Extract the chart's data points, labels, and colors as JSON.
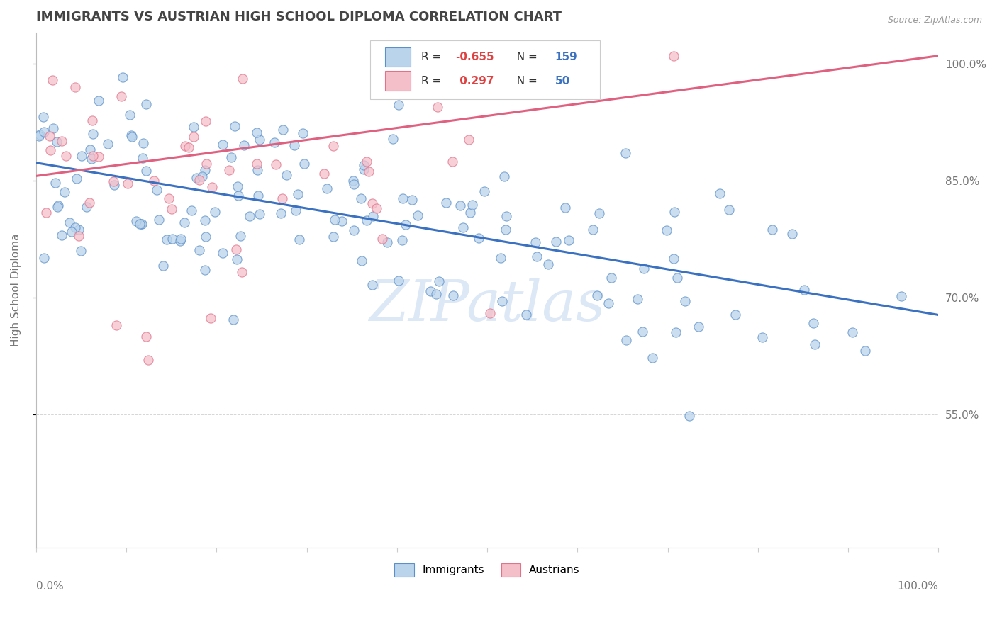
{
  "title": "IMMIGRANTS VS AUSTRIAN HIGH SCHOOL DIPLOMA CORRELATION CHART",
  "source_text": "Source: ZipAtlas.com",
  "ylabel": "High School Diploma",
  "blue_R": "-0.655",
  "blue_N": "159",
  "pink_R": "0.297",
  "pink_N": "50",
  "blue_fill": "#bad4ec",
  "blue_edge": "#5b8fc9",
  "pink_fill": "#f5bfca",
  "pink_edge": "#e0728a",
  "blue_line": "#3a71c1",
  "pink_line": "#e06080",
  "background_color": "#ffffff",
  "grid_color": "#cccccc",
  "title_color": "#444444",
  "watermark_color": "#dce8f5",
  "blue_line_start_y": 0.873,
  "blue_line_end_y": 0.678,
  "pink_line_start_y": 0.856,
  "pink_line_end_y": 1.01,
  "y_ticks": [
    0.55,
    0.7,
    0.85,
    1.0
  ],
  "y_tick_labels": [
    "55.0%",
    "70.0%",
    "85.0%",
    "100.0%"
  ],
  "ylim_low": 0.38,
  "ylim_high": 1.04,
  "xlim_low": 0.0,
  "xlim_high": 1.0
}
